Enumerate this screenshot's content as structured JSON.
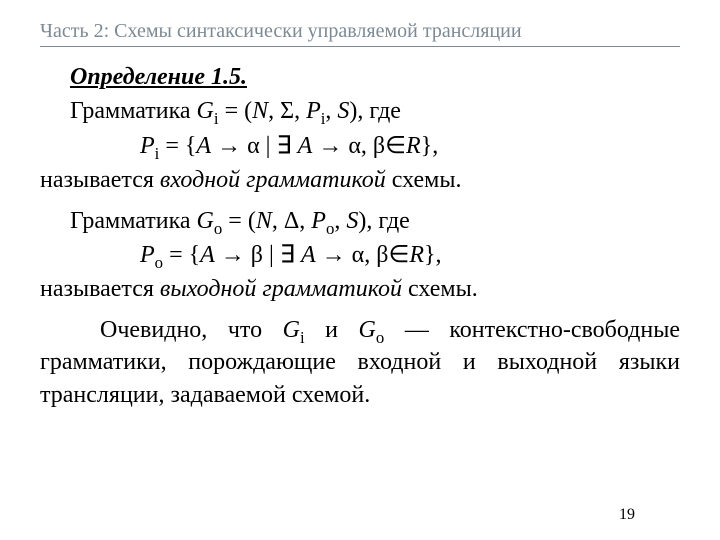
{
  "header": "Часть 2: Схемы синтаксически управляемой трансляции",
  "def_title": "Определение 1.5.",
  "gi_line": {
    "pre": "Грамматика ",
    "G": "G",
    "sub": "i",
    "eq": " = (",
    "N": "N",
    "comma1": ", Σ, ",
    "P": "P",
    "psub": "i",
    "comma2": ", ",
    "S": "S",
    "end": "), где"
  },
  "pi_line": {
    "P": "P",
    "sub": "i",
    "eq": " = {",
    "A": "A",
    "arrow1": " → α | ",
    "exist": "∃",
    "A2": " A",
    "arrow2": " → α, β",
    "in": "∈",
    "R": "R",
    "end": "},"
  },
  "pi_called": {
    "pre": "называется ",
    "ital": "входной грамматикой",
    "post": " схемы."
  },
  "go_line": {
    "pre": "Грамматика ",
    "G": "G",
    "sub": "o",
    "eq": " = (",
    "N": "N",
    "comma1": ", Δ, ",
    "P": "P",
    "psub": "o",
    "comma2": ", ",
    "S": "S",
    "end": "), где"
  },
  "po_line": {
    "P": "P",
    "sub": "o",
    "eq": " = {",
    "A": "A",
    "arrow1": " → β | ",
    "exist": "∃",
    "A2": " A",
    "arrow2": " → α, β",
    "in": "∈",
    "R": "R",
    "end": "},"
  },
  "po_called": {
    "pre": "называется ",
    "ital": "выходной грамматикой",
    "post": " схемы."
  },
  "para": {
    "t1": "Очевидно, что ",
    "G1": "G",
    "s1": "i",
    "t2": " и ",
    "G2": "G",
    "s2": "o",
    "t3": " — контекстно-свободные грамматики, порождающие входной и выходной языки трансляции, задаваемой схемой."
  },
  "pagenum": "19",
  "colors": {
    "header": "#7c8a94",
    "text": "#000000",
    "bg": "#ffffff"
  },
  "fonts": {
    "family": "Times New Roman",
    "header_size_pt": 15,
    "body_size_pt": 18
  }
}
